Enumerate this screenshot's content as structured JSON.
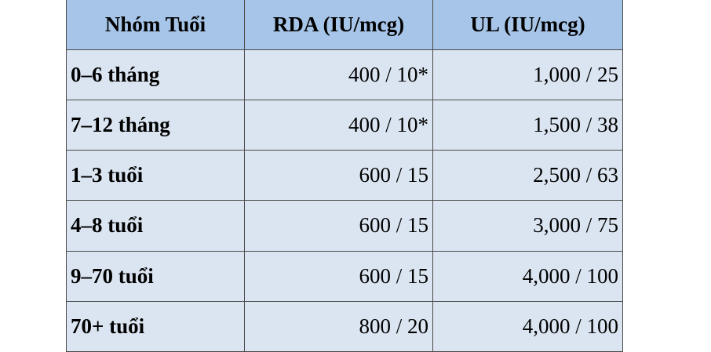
{
  "table": {
    "header": [
      "Nhóm Tuổi",
      "RDA (IU/mcg)",
      "UL (IU/mcg)"
    ],
    "rows": [
      [
        "0–6 tháng",
        "400 / 10*",
        "1,000 / 25"
      ],
      [
        "7–12 tháng",
        "400 / 10*",
        "1,500 / 38"
      ],
      [
        "1–3 tuổi",
        "600 / 15",
        "2,500 / 63"
      ],
      [
        "4–8 tuổi",
        "600 / 15",
        "3,000 / 75"
      ],
      [
        "9–70 tuổi",
        "600 / 15",
        "4,000 / 100"
      ],
      [
        "70+ tuổi",
        "800 / 20",
        "4,000 / 100"
      ]
    ]
  }
}
